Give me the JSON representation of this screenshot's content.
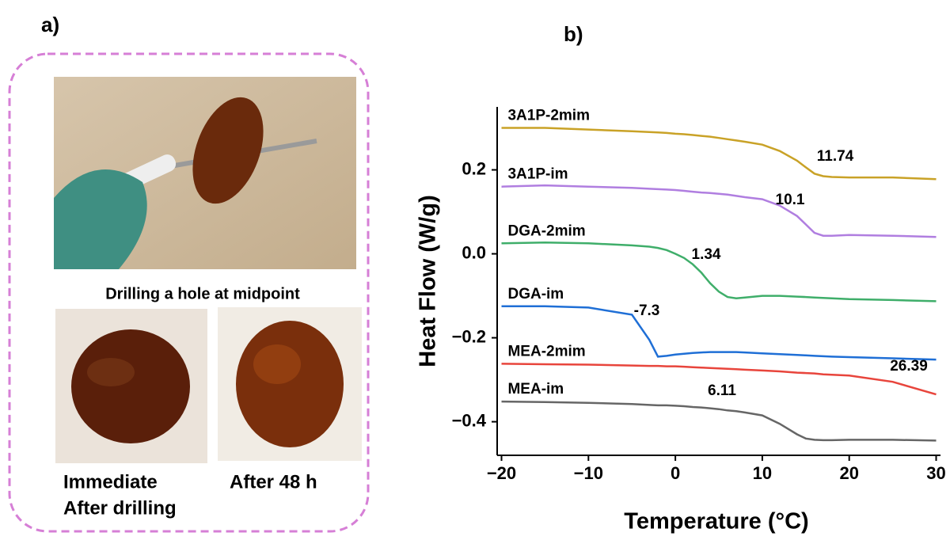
{
  "panel_a": {
    "label": "a)",
    "top_caption": "Drilling a hole at midpoint",
    "bottom_left_caption": [
      "Immediate",
      "After drilling"
    ],
    "bottom_right_caption": "After 48 h"
  },
  "chart_data": {
    "type": "line",
    "panel_label": "b)",
    "x_label": "Temperature (°C)",
    "y_label": "Heat Flow  (W/g)",
    "xlim": [
      -20.5,
      30.5
    ],
    "ylim": [
      -0.48,
      0.35
    ],
    "xticks": [
      {
        "value": -20,
        "label": "−20"
      },
      {
        "value": -10,
        "label": "−10"
      },
      0,
      10,
      20,
      30
    ],
    "yticks": [
      {
        "value": -0.4,
        "label": "−0.4"
      },
      {
        "value": -0.2,
        "label": "−0.2"
      },
      {
        "value": 0,
        "label": "0.0"
      },
      0.2
    ],
    "x": [
      -20,
      -15,
      -10,
      -5,
      -3,
      -2,
      -1,
      0,
      1,
      2,
      3,
      4,
      5,
      6,
      7,
      8,
      10,
      12,
      14,
      15,
      16,
      17,
      18,
      20,
      25,
      30
    ],
    "series": [
      {
        "name": "3A1P-2mim",
        "color": "#c9a227",
        "values": [
          0.3,
          0.3,
          0.296,
          0.292,
          0.29,
          0.289,
          0.288,
          0.286,
          0.285,
          0.283,
          0.281,
          0.279,
          0.276,
          0.273,
          0.27,
          0.267,
          0.26,
          0.245,
          0.222,
          0.206,
          0.191,
          0.185,
          0.183,
          0.182,
          0.182,
          0.178
        ]
      },
      {
        "name": "3A1P-im",
        "color": "#b07ee0",
        "values": [
          0.16,
          0.163,
          0.16,
          0.157,
          0.155,
          0.154,
          0.153,
          0.152,
          0.15,
          0.148,
          0.146,
          0.145,
          0.143,
          0.141,
          0.138,
          0.135,
          0.13,
          0.115,
          0.09,
          0.07,
          0.05,
          0.043,
          0.043,
          0.045,
          0.043,
          0.04
        ]
      },
      {
        "name": "DGA-2mim",
        "color": "#3fae6a",
        "values": [
          0.025,
          0.027,
          0.025,
          0.02,
          0.017,
          0.014,
          0.009,
          0.0,
          -0.01,
          -0.025,
          -0.045,
          -0.07,
          -0.09,
          -0.103,
          -0.106,
          -0.104,
          -0.1,
          -0.1,
          -0.102,
          -0.103,
          -0.104,
          -0.105,
          -0.106,
          -0.108,
          -0.11,
          -0.113
        ]
      },
      {
        "name": "DGA-im",
        "color": "#1f6fd6",
        "values": [
          -0.125,
          -0.125,
          -0.128,
          -0.145,
          -0.205,
          -0.245,
          -0.243,
          -0.24,
          -0.238,
          -0.236,
          -0.235,
          -0.234,
          -0.234,
          -0.234,
          -0.234,
          -0.235,
          -0.237,
          -0.239,
          -0.241,
          -0.242,
          -0.243,
          -0.244,
          -0.245,
          -0.246,
          -0.249,
          -0.252
        ]
      },
      {
        "name": "MEA-2mim",
        "color": "#e8453c",
        "values": [
          -0.262,
          -0.263,
          -0.264,
          -0.266,
          -0.267,
          -0.267,
          -0.268,
          -0.268,
          -0.269,
          -0.27,
          -0.271,
          -0.272,
          -0.273,
          -0.274,
          -0.275,
          -0.276,
          -0.278,
          -0.28,
          -0.283,
          -0.284,
          -0.285,
          -0.287,
          -0.288,
          -0.29,
          -0.305,
          -0.335
        ]
      },
      {
        "name": "MEA-im",
        "color": "#666666",
        "values": [
          -0.352,
          -0.353,
          -0.355,
          -0.358,
          -0.36,
          -0.361,
          -0.361,
          -0.362,
          -0.363,
          -0.365,
          -0.366,
          -0.368,
          -0.37,
          -0.373,
          -0.375,
          -0.378,
          -0.385,
          -0.405,
          -0.43,
          -0.44,
          -0.443,
          -0.444,
          -0.444,
          -0.443,
          -0.443,
          -0.445
        ]
      }
    ],
    "annotations": [
      "11.74",
      "10.1",
      "1.34",
      "-7.3",
      "26.39",
      "6.11"
    ]
  }
}
